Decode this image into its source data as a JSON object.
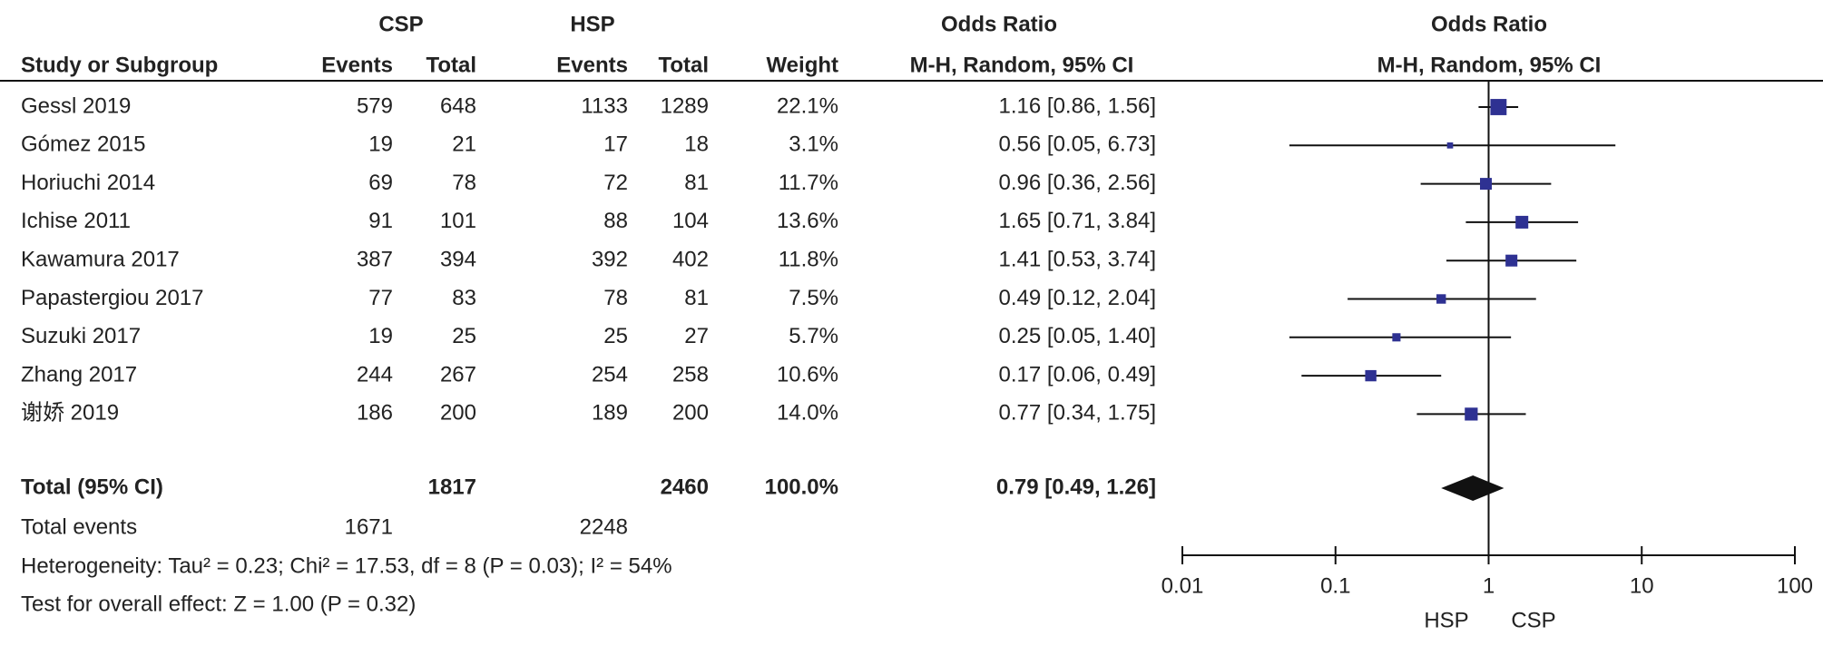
{
  "chart_data": {
    "type": "forest",
    "column_headers": {
      "study": "Study or Subgroup",
      "group1": "CSP",
      "group2": "HSP",
      "events1": "Events",
      "total1": "Total",
      "events2": "Events",
      "total2": "Total",
      "weight": "Weight",
      "effect": "Odds Ratio",
      "method": "M-H, Random, 95% CI",
      "plot_title": "Odds Ratio",
      "plot_method": "M-H, Random, 95% CI"
    },
    "studies": [
      "Gessl 2019",
      "Gómez 2015",
      "Horiuchi 2014",
      "Ichise 2011",
      "Kawamura 2017",
      "Papastergiou 2017",
      "Suzuki 2017",
      "Zhang 2017",
      "谢娇 2019"
    ],
    "events1": [
      579,
      19,
      69,
      91,
      387,
      77,
      19,
      244,
      186
    ],
    "total1": [
      648,
      21,
      78,
      101,
      394,
      83,
      25,
      267,
      200
    ],
    "events2": [
      1133,
      17,
      72,
      88,
      392,
      78,
      25,
      254,
      189
    ],
    "total2": [
      1289,
      18,
      81,
      104,
      402,
      81,
      27,
      258,
      200
    ],
    "weights": [
      22.1,
      3.1,
      11.7,
      13.6,
      11.8,
      7.5,
      5.7,
      10.6,
      14.0
    ],
    "weight_labels": [
      "22.1%",
      "3.1%",
      "11.7%",
      "13.6%",
      "11.8%",
      "7.5%",
      "5.7%",
      "10.6%",
      "14.0%"
    ],
    "values": [
      1.16,
      0.56,
      0.96,
      1.65,
      1.41,
      0.49,
      0.25,
      0.17,
      0.77
    ],
    "ci_lower": [
      0.86,
      0.05,
      0.36,
      0.71,
      0.53,
      0.12,
      0.05,
      0.06,
      0.34
    ],
    "ci_upper": [
      1.56,
      6.73,
      2.56,
      3.84,
      3.74,
      2.04,
      1.4,
      0.49,
      1.75
    ],
    "value_labels": [
      "1.16 [0.86, 1.56]",
      "0.56 [0.05, 6.73]",
      "0.96 [0.36, 2.56]",
      "1.65 [0.71, 3.84]",
      "1.41 [0.53, 3.74]",
      "0.49 [0.12, 2.04]",
      "0.25 [0.05, 1.40]",
      "0.17 [0.06, 0.49]",
      "0.77 [0.34, 1.75]"
    ],
    "overall": {
      "label": "Total (95% CI)",
      "total1": 1817,
      "total2": 2460,
      "weight": 100,
      "weight_label": "100.0%",
      "value": 0.79,
      "ci_lower": 0.49,
      "ci_upper": 1.26,
      "value_label": "0.79 [0.49, 1.26]",
      "events_label": "Total events",
      "events1": 1671,
      "events2": 2248
    },
    "heterogeneity": "Heterogeneity: Tau² = 0.23; Chi² = 17.53, df = 8 (P = 0.03); I² = 54%",
    "overall_effect": "Test for overall effect: Z = 1.00 (P = 0.32)",
    "xlim": [
      0.01,
      100
    ],
    "xticks": [
      0.01,
      0.1,
      1,
      10,
      100
    ],
    "log_scale": true,
    "favours": [
      "HSP",
      "CSP"
    ],
    "color": "#2e3192"
  }
}
